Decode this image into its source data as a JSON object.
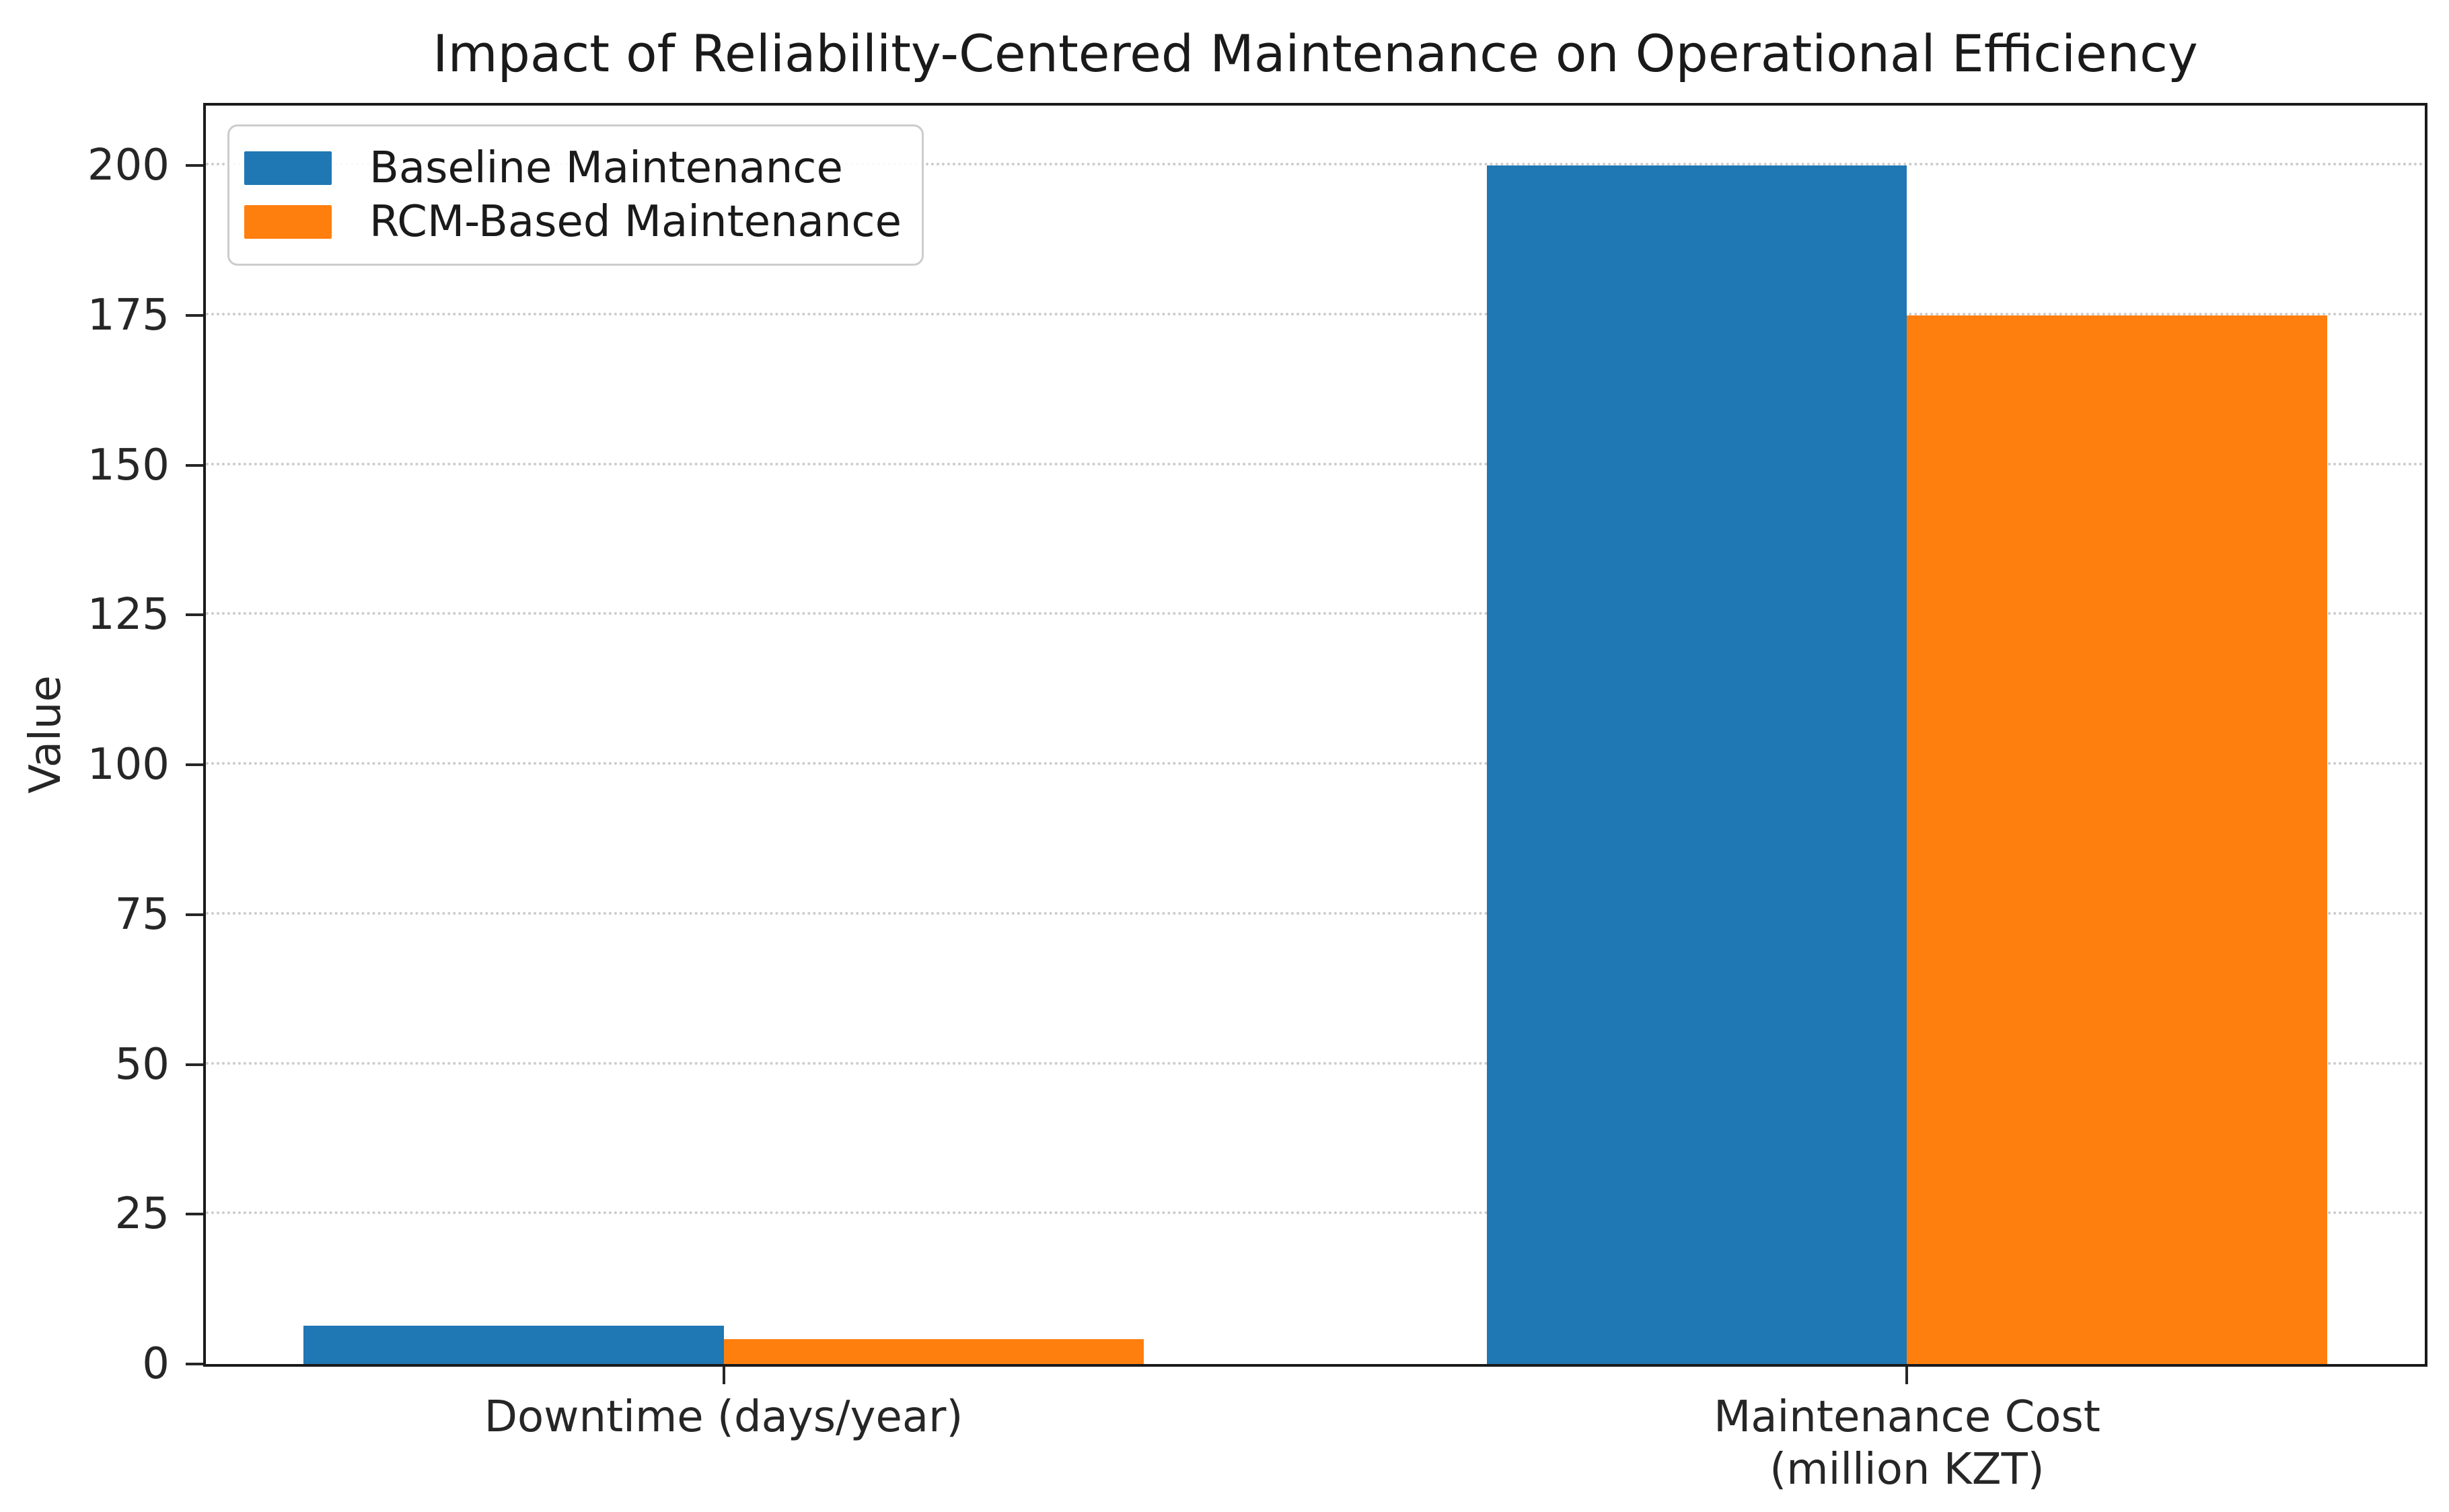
{
  "chart_data": {
    "type": "bar",
    "title": "Impact of Reliability-Centered Maintenance on Operational Efficiency",
    "xlabel": "",
    "ylabel": "Value",
    "categories": [
      "Downtime (days/year)",
      "Maintenance Cost\n(million KZT)"
    ],
    "series": [
      {
        "name": "Baseline Maintenance",
        "color": "#1f77b4",
        "values": [
          6.4,
          200
        ]
      },
      {
        "name": "RCM-Based Maintenance",
        "color": "#ff7f0e",
        "values": [
          4.2,
          175
        ]
      }
    ],
    "ylim": [
      0,
      210
    ],
    "yticks": [
      0,
      25,
      50,
      75,
      100,
      125,
      150,
      175,
      200
    ],
    "bar_width": 0.355,
    "xlim": [
      -0.4375,
      1.4375
    ],
    "grid": "horizontal dotted",
    "grid_color": "#cccccc",
    "spine_color": "#262626",
    "legend_position": "upper left"
  }
}
